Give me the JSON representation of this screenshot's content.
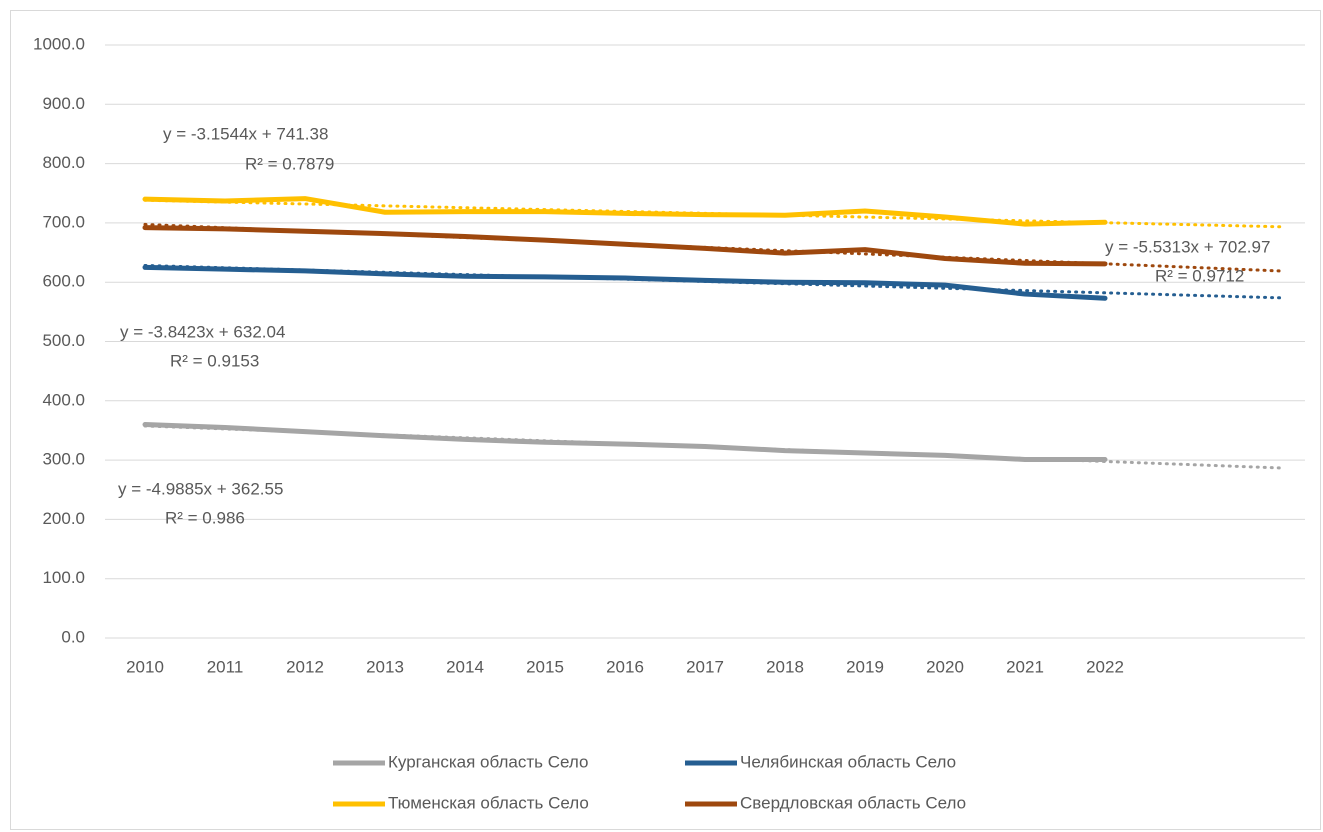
{
  "chart_data": {
    "type": "line",
    "categories": [
      "2010",
      "2011",
      "2012",
      "2013",
      "2014",
      "2015",
      "2016",
      "2017",
      "2018",
      "2019",
      "2020",
      "2021",
      "2022",
      null,
      null
    ],
    "ylim": [
      0,
      1000
    ],
    "yticks": [
      {
        "value": 0,
        "label": "0.0"
      },
      {
        "value": 100,
        "label": "100.0"
      },
      {
        "value": 200,
        "label": "200.0"
      },
      {
        "value": 300,
        "label": "300.0"
      },
      {
        "value": 400,
        "label": "400.0"
      },
      {
        "value": 500,
        "label": "500.0"
      },
      {
        "value": 600,
        "label": "600.0"
      },
      {
        "value": 700,
        "label": "700.0"
      },
      {
        "value": 800,
        "label": "800.0"
      },
      {
        "value": 900,
        "label": "900.0"
      },
      {
        "value": 1000,
        "label": "1000.0"
      }
    ],
    "grid": true,
    "legend": "bottom",
    "series": [
      {
        "name": "Курганская область Село",
        "color": "#a5a5a5",
        "values": [
          360,
          355,
          348,
          341,
          335,
          330,
          327,
          323,
          316,
          312,
          308,
          301,
          301,
          null,
          null
        ]
      },
      {
        "name": "Челябинская область Село",
        "color": "#255e91",
        "values": [
          625,
          622,
          619,
          614,
          610,
          609,
          607,
          603,
          600,
          599,
          595,
          580,
          573,
          null,
          null
        ]
      },
      {
        "name": "Тюменская область Село",
        "color": "#ffc000",
        "values": [
          740,
          737,
          741,
          718,
          719,
          719,
          716,
          714,
          713,
          720,
          710,
          698,
          701,
          null,
          null
        ]
      },
      {
        "name": "Свердловская область Село",
        "color": "#9e480e",
        "values": [
          692,
          690,
          686,
          682,
          677,
          671,
          664,
          657,
          649,
          655,
          640,
          632,
          631,
          null,
          null
        ]
      }
    ],
    "trendlines": [
      {
        "color": "#a5a5a5",
        "slope": -4.9885,
        "intercept": 362.55,
        "equation": "y = -4.9885x + 362.55",
        "r2": "R² = 0.986"
      },
      {
        "color": "#255e91",
        "slope": -3.8423,
        "intercept": 632.04,
        "equation": "y = -3.8423x + 632.04",
        "r2": "R² = 0.9153"
      },
      {
        "color": "#ffc000",
        "slope": -3.1544,
        "intercept": 741.38,
        "equation": "y = -3.1544x + 741.38",
        "r2": "R² = 0.7879"
      },
      {
        "color": "#9e480e",
        "slope": -5.5313,
        "intercept": 702.97,
        "equation": "y = -5.5313x + 702.97",
        "r2": "R² = 0.9712"
      }
    ]
  }
}
